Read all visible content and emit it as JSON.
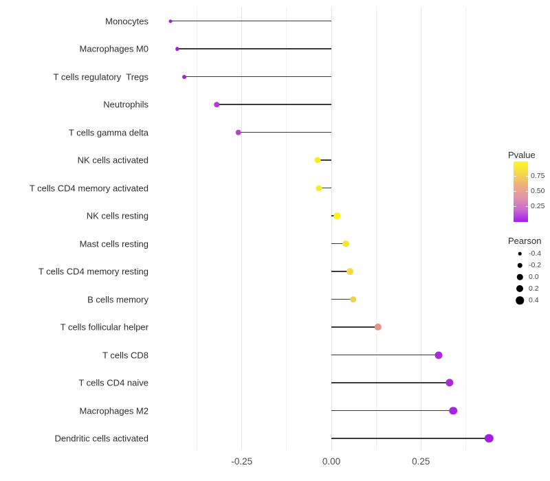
{
  "chart_data": {
    "type": "scatter",
    "subtype": "lollipop",
    "title": "",
    "xlabel": "",
    "ylabel": "",
    "x_axis": {
      "tick_labels": [
        "-0.25",
        "0.00",
        "0.25"
      ],
      "tick_values": [
        -0.25,
        0.0,
        0.25
      ],
      "minor_gridlines": [
        -0.375,
        -0.125,
        0.125,
        0.375
      ],
      "range": [
        -0.465,
        0.48
      ],
      "grid": "vertical-only"
    },
    "points": [
      {
        "label": "Monocytes",
        "pearson": -0.45,
        "color": "#9d1ed9",
        "size": 5.0
      },
      {
        "label": "Macrophages M0",
        "pearson": -0.43,
        "color": "#9f20d8",
        "size": 5.5
      },
      {
        "label": "T cells regulatory  Tregs",
        "pearson": -0.41,
        "color": "#a424d6",
        "size": 6.0
      },
      {
        "label": "Neutrophils",
        "pearson": -0.32,
        "color": "#b03cd3",
        "size": 7.5
      },
      {
        "label": "T cells gamma delta",
        "pearson": -0.26,
        "color": "#b342d1",
        "size": 8.5
      },
      {
        "label": "NK cells activated",
        "pearson": -0.039,
        "color": "#f8eb28",
        "size": 9.0
      },
      {
        "label": "T cells CD4 memory activated",
        "pearson": -0.035,
        "color": "#f8ea2c",
        "size": 9.0
      },
      {
        "label": "NK cells resting",
        "pearson": 0.016,
        "color": "#faf021",
        "size": 9.5
      },
      {
        "label": "Mast cells resting",
        "pearson": 0.04,
        "color": "#f7e236",
        "size": 9.7
      },
      {
        "label": "T cells CD4 memory resting",
        "pearson": 0.052,
        "color": "#f5da44",
        "size": 9.7
      },
      {
        "label": "B cells memory",
        "pearson": 0.061,
        "color": "#f2d14e",
        "size": 9.7
      },
      {
        "label": "T cells follicular helper",
        "pearson": 0.13,
        "color": "#e9927f",
        "size": 10.3
      },
      {
        "label": "T cells CD8",
        "pearson": 0.3,
        "color": "#ab2bd9",
        "size": 11.0
      },
      {
        "label": "T cells CD4 naive",
        "pearson": 0.33,
        "color": "#aa29da",
        "size": 11.3
      },
      {
        "label": "Macrophages M2",
        "pearson": 0.34,
        "color": "#a927db",
        "size": 11.5
      },
      {
        "label": "Dendritic cells activated",
        "pearson": 0.44,
        "color": "#a51fe0",
        "size": 12.3
      }
    ],
    "legend_pvalue": {
      "title": "Pvalue",
      "tick_labels": [
        "0.75",
        "0.50",
        "0.25"
      ],
      "gradient_stops": [
        "#fcf926",
        "#f6d84a",
        "#eeae7d",
        "#e294ab",
        "#c86acf",
        "#a81bf2"
      ],
      "position": "right"
    },
    "legend_pearson": {
      "title": "Pearson",
      "entries": [
        {
          "label": "-0.4",
          "diameter": 4.5
        },
        {
          "label": "-0.2",
          "diameter": 6.5
        },
        {
          "label": "0.0",
          "diameter": 8.5
        },
        {
          "label": "0.2",
          "diameter": 10.0
        },
        {
          "label": "0.4",
          "diameter": 11.5
        }
      ],
      "dot_color": "#000000",
      "position": "right"
    }
  }
}
